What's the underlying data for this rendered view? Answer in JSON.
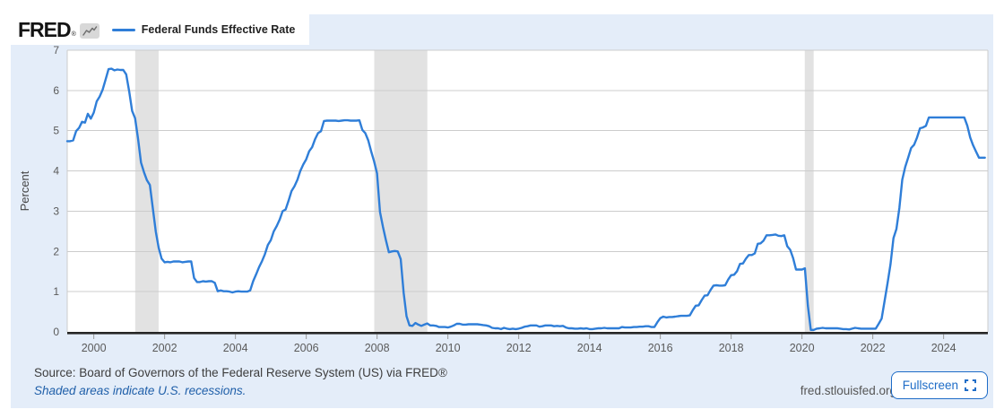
{
  "header": {
    "logo_text": "FRED",
    "logo_reg": "®",
    "legend_label": "Federal Funds Effective Rate"
  },
  "footer": {
    "source_text": "Source: Board of Governors of the Federal Reserve System (US) via FRED®",
    "recessions_note": "Shaded areas indicate U.S. recessions.",
    "domain": "fred.stlouisfed.org",
    "fullscreen_label": "Fullscreen"
  },
  "colors": {
    "card_background": "#e4edf9",
    "plot_background": "#ffffff",
    "line": "#2f7ed8",
    "recession_band": "#e2e2e2",
    "gridline": "#cccccc",
    "axis": "#262626",
    "tick_label": "#5a5a5a",
    "link_blue": "#1f5fa9",
    "button_blue": "#1e6cc7"
  },
  "chart_data": {
    "type": "line",
    "title": "Federal Funds Effective Rate",
    "ylabel": "Percent",
    "xlabel": "",
    "ylim": [
      0,
      7
    ],
    "y_ticks": [
      0,
      1,
      2,
      3,
      4,
      5,
      6,
      7
    ],
    "xlim": [
      1999.25,
      2025.25
    ],
    "x_ticks": [
      2000,
      2002,
      2004,
      2006,
      2008,
      2010,
      2012,
      2014,
      2016,
      2018,
      2020,
      2022,
      2024
    ],
    "grid": "horizontal",
    "legend_position": "top-left",
    "recessions": [
      {
        "start": 2001.17,
        "end": 2001.83
      },
      {
        "start": 2007.92,
        "end": 2009.42
      },
      {
        "start": 2020.08,
        "end": 2020.33
      }
    ],
    "series": [
      {
        "name": "Federal Funds Effective Rate",
        "units": "Percent",
        "frequency": "monthly",
        "start_year": 1999,
        "start_month": 4,
        "values": [
          4.74,
          4.74,
          4.76,
          4.99,
          5.07,
          5.22,
          5.2,
          5.42,
          5.3,
          5.45,
          5.73,
          5.85,
          6.02,
          6.27,
          6.53,
          6.54,
          6.5,
          6.52,
          6.51,
          6.51,
          6.4,
          5.98,
          5.49,
          5.31,
          4.8,
          4.21,
          3.97,
          3.77,
          3.65,
          3.07,
          2.49,
          2.09,
          1.82,
          1.73,
          1.74,
          1.73,
          1.75,
          1.75,
          1.75,
          1.73,
          1.74,
          1.75,
          1.75,
          1.34,
          1.24,
          1.24,
          1.26,
          1.25,
          1.26,
          1.26,
          1.22,
          1.01,
          1.03,
          1.01,
          1.01,
          1.0,
          0.98,
          1.0,
          1.01,
          1.0,
          1.0,
          1.0,
          1.03,
          1.26,
          1.43,
          1.61,
          1.76,
          1.93,
          2.16,
          2.28,
          2.5,
          2.63,
          2.79,
          3.0,
          3.04,
          3.26,
          3.5,
          3.62,
          3.78,
          4.0,
          4.16,
          4.29,
          4.49,
          4.59,
          4.79,
          4.94,
          4.99,
          5.24,
          5.25,
          5.25,
          5.25,
          5.25,
          5.24,
          5.25,
          5.26,
          5.26,
          5.25,
          5.25,
          5.25,
          5.26,
          5.02,
          4.94,
          4.76,
          4.49,
          4.24,
          3.94,
          2.98,
          2.61,
          2.28,
          1.98,
          2.0,
          2.01,
          2.0,
          1.81,
          0.97,
          0.39,
          0.16,
          0.15,
          0.22,
          0.18,
          0.15,
          0.18,
          0.21,
          0.16,
          0.16,
          0.15,
          0.12,
          0.12,
          0.12,
          0.11,
          0.13,
          0.16,
          0.2,
          0.2,
          0.18,
          0.18,
          0.19,
          0.19,
          0.19,
          0.19,
          0.18,
          0.17,
          0.16,
          0.14,
          0.1,
          0.09,
          0.09,
          0.07,
          0.1,
          0.08,
          0.07,
          0.08,
          0.07,
          0.08,
          0.1,
          0.13,
          0.14,
          0.16,
          0.16,
          0.16,
          0.13,
          0.14,
          0.16,
          0.16,
          0.16,
          0.14,
          0.15,
          0.14,
          0.15,
          0.11,
          0.09,
          0.09,
          0.08,
          0.08,
          0.09,
          0.08,
          0.09,
          0.07,
          0.07,
          0.08,
          0.09,
          0.09,
          0.1,
          0.09,
          0.09,
          0.09,
          0.09,
          0.09,
          0.12,
          0.11,
          0.11,
          0.11,
          0.12,
          0.12,
          0.13,
          0.13,
          0.14,
          0.14,
          0.12,
          0.12,
          0.24,
          0.34,
          0.38,
          0.36,
          0.37,
          0.37,
          0.38,
          0.39,
          0.4,
          0.4,
          0.4,
          0.41,
          0.54,
          0.65,
          0.66,
          0.79,
          0.9,
          0.91,
          1.04,
          1.15,
          1.16,
          1.15,
          1.15,
          1.16,
          1.3,
          1.41,
          1.42,
          1.51,
          1.69,
          1.7,
          1.82,
          1.91,
          1.91,
          1.95,
          2.19,
          2.2,
          2.27,
          2.4,
          2.4,
          2.41,
          2.42,
          2.39,
          2.38,
          2.4,
          2.13,
          2.04,
          1.83,
          1.55,
          1.55,
          1.55,
          1.58,
          0.65,
          0.05,
          0.05,
          0.08,
          0.09,
          0.1,
          0.09,
          0.09,
          0.09,
          0.09,
          0.09,
          0.08,
          0.07,
          0.07,
          0.06,
          0.08,
          0.1,
          0.09,
          0.08,
          0.08,
          0.08,
          0.08,
          0.08,
          0.08,
          0.2,
          0.33,
          0.77,
          1.21,
          1.68,
          2.33,
          2.56,
          3.08,
          3.78,
          4.1,
          4.33,
          4.57,
          4.65,
          4.83,
          5.06,
          5.08,
          5.12,
          5.33,
          5.33,
          5.33,
          5.33,
          5.33,
          5.33,
          5.33,
          5.33,
          5.33,
          5.33,
          5.33,
          5.33,
          5.33,
          5.13,
          4.83,
          4.64,
          4.48,
          4.33,
          4.33,
          4.33
        ]
      }
    ]
  }
}
